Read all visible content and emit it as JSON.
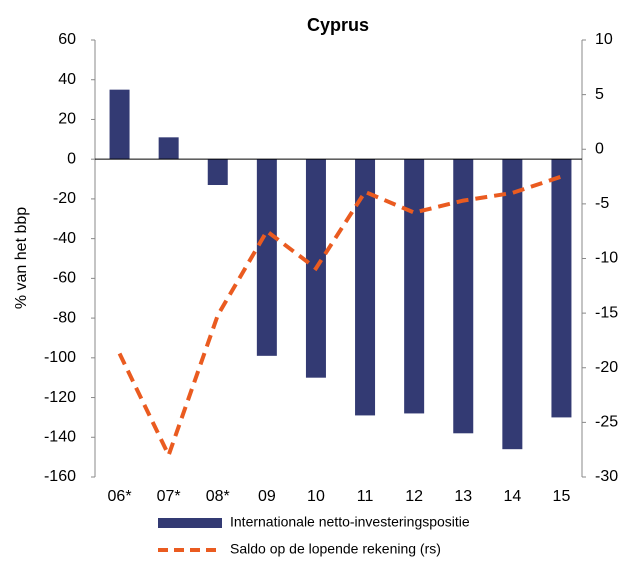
{
  "chart_data": {
    "type": "bar-line",
    "title": "Cyprus",
    "ylabel": "% van het bbp",
    "categories": [
      "06*",
      "07*",
      "08*",
      "09",
      "10",
      "11",
      "12",
      "13",
      "14",
      "15"
    ],
    "series": [
      {
        "name": "Internationale netto-investeringspositie",
        "type": "bar",
        "color": "#333a73",
        "values": [
          35,
          11,
          -13,
          -99,
          -110,
          -129,
          -128,
          -138,
          -146,
          -130
        ]
      },
      {
        "name": "Saldo op de lopende rekening (rs)",
        "type": "line",
        "axis": "y2",
        "color": "#ea5b20",
        "values": [
          -18.7,
          -28,
          -15.2,
          -7.5,
          -10.9,
          -3.9,
          -5.8,
          -4.7,
          -4.0,
          -2.5
        ]
      }
    ],
    "ylim": [
      -160,
      60
    ],
    "yticks": [
      -160,
      -140,
      -120,
      -100,
      -80,
      -60,
      -40,
      -20,
      0,
      20,
      40,
      60
    ],
    "y2lim": [
      -30,
      10
    ],
    "y2ticks": [
      -30,
      -25,
      -20,
      -15,
      -10,
      -5,
      0,
      5,
      10
    ]
  }
}
